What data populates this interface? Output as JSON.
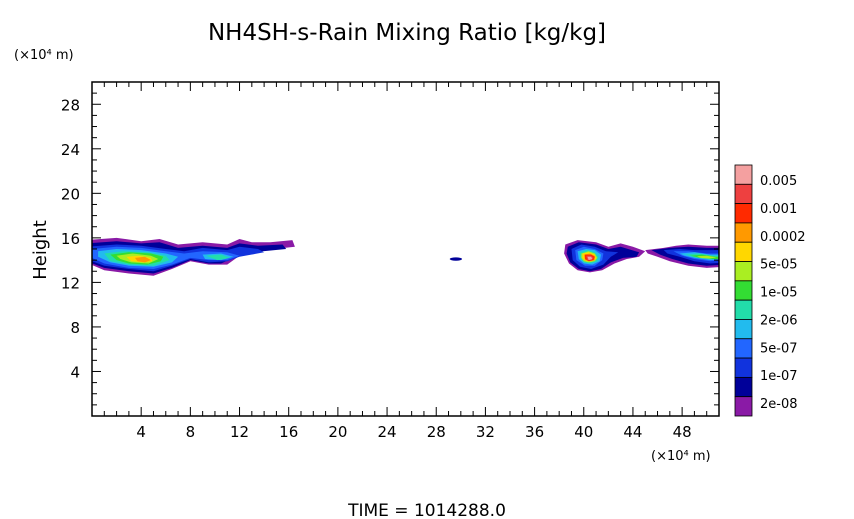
{
  "chart_data": {
    "type": "heatmap",
    "title": "NH4SH-s-Rain Mixing Ratio [kg/kg]",
    "ylabel": "Height",
    "y_unit_label": "(×10⁴ m)",
    "x_unit_label": "(×10⁴ m)",
    "xlim": [
      0,
      51
    ],
    "ylim": [
      0,
      30
    ],
    "x_ticks": [
      4,
      8,
      12,
      16,
      20,
      24,
      28,
      32,
      36,
      40,
      44,
      48
    ],
    "y_ticks": [
      4,
      8,
      12,
      16,
      20,
      24,
      28
    ],
    "x_tick_labels": [
      "4",
      "8",
      "12",
      "16",
      "20",
      "24",
      "28",
      "32",
      "36",
      "40",
      "44",
      "48"
    ],
    "y_tick_labels": [
      "4",
      "8",
      "12",
      "16",
      "20",
      "24",
      "28"
    ],
    "colorbar": {
      "levels": [
        "0.005",
        "0.001",
        "0.0002",
        "5e-05",
        "1e-05",
        "2e-06",
        "5e-07",
        "1e-07",
        "2e-08"
      ],
      "colors": [
        "#f4a0a0",
        "#ee4040",
        "#ff2a00",
        "#ff9900",
        "#ffd700",
        "#aaee22",
        "#33dd33",
        "#22ddaa",
        "#22bbee",
        "#2266ff",
        "#1133dd",
        "#000099",
        "#8a1aa6"
      ]
    },
    "features": [
      {
        "name": "left band",
        "x_range": [
          0,
          16.5
        ],
        "z_range": [
          12.5,
          16
        ],
        "max_level": "0.0002"
      },
      {
        "name": "small speck",
        "x_range": [
          29,
          30
        ],
        "z_range": [
          13.9,
          14.3
        ],
        "max_level": "2e-08"
      },
      {
        "name": "right core",
        "x_range": [
          39,
          44
        ],
        "z_range": [
          12.8,
          15.6
        ],
        "max_level": "0.005"
      },
      {
        "name": "right edge band",
        "x_range": [
          45,
          51
        ],
        "z_range": [
          13.3,
          15.5
        ],
        "max_level": "5e-05"
      }
    ]
  },
  "footer": {
    "time_label": "TIME  =  1014288.0"
  }
}
